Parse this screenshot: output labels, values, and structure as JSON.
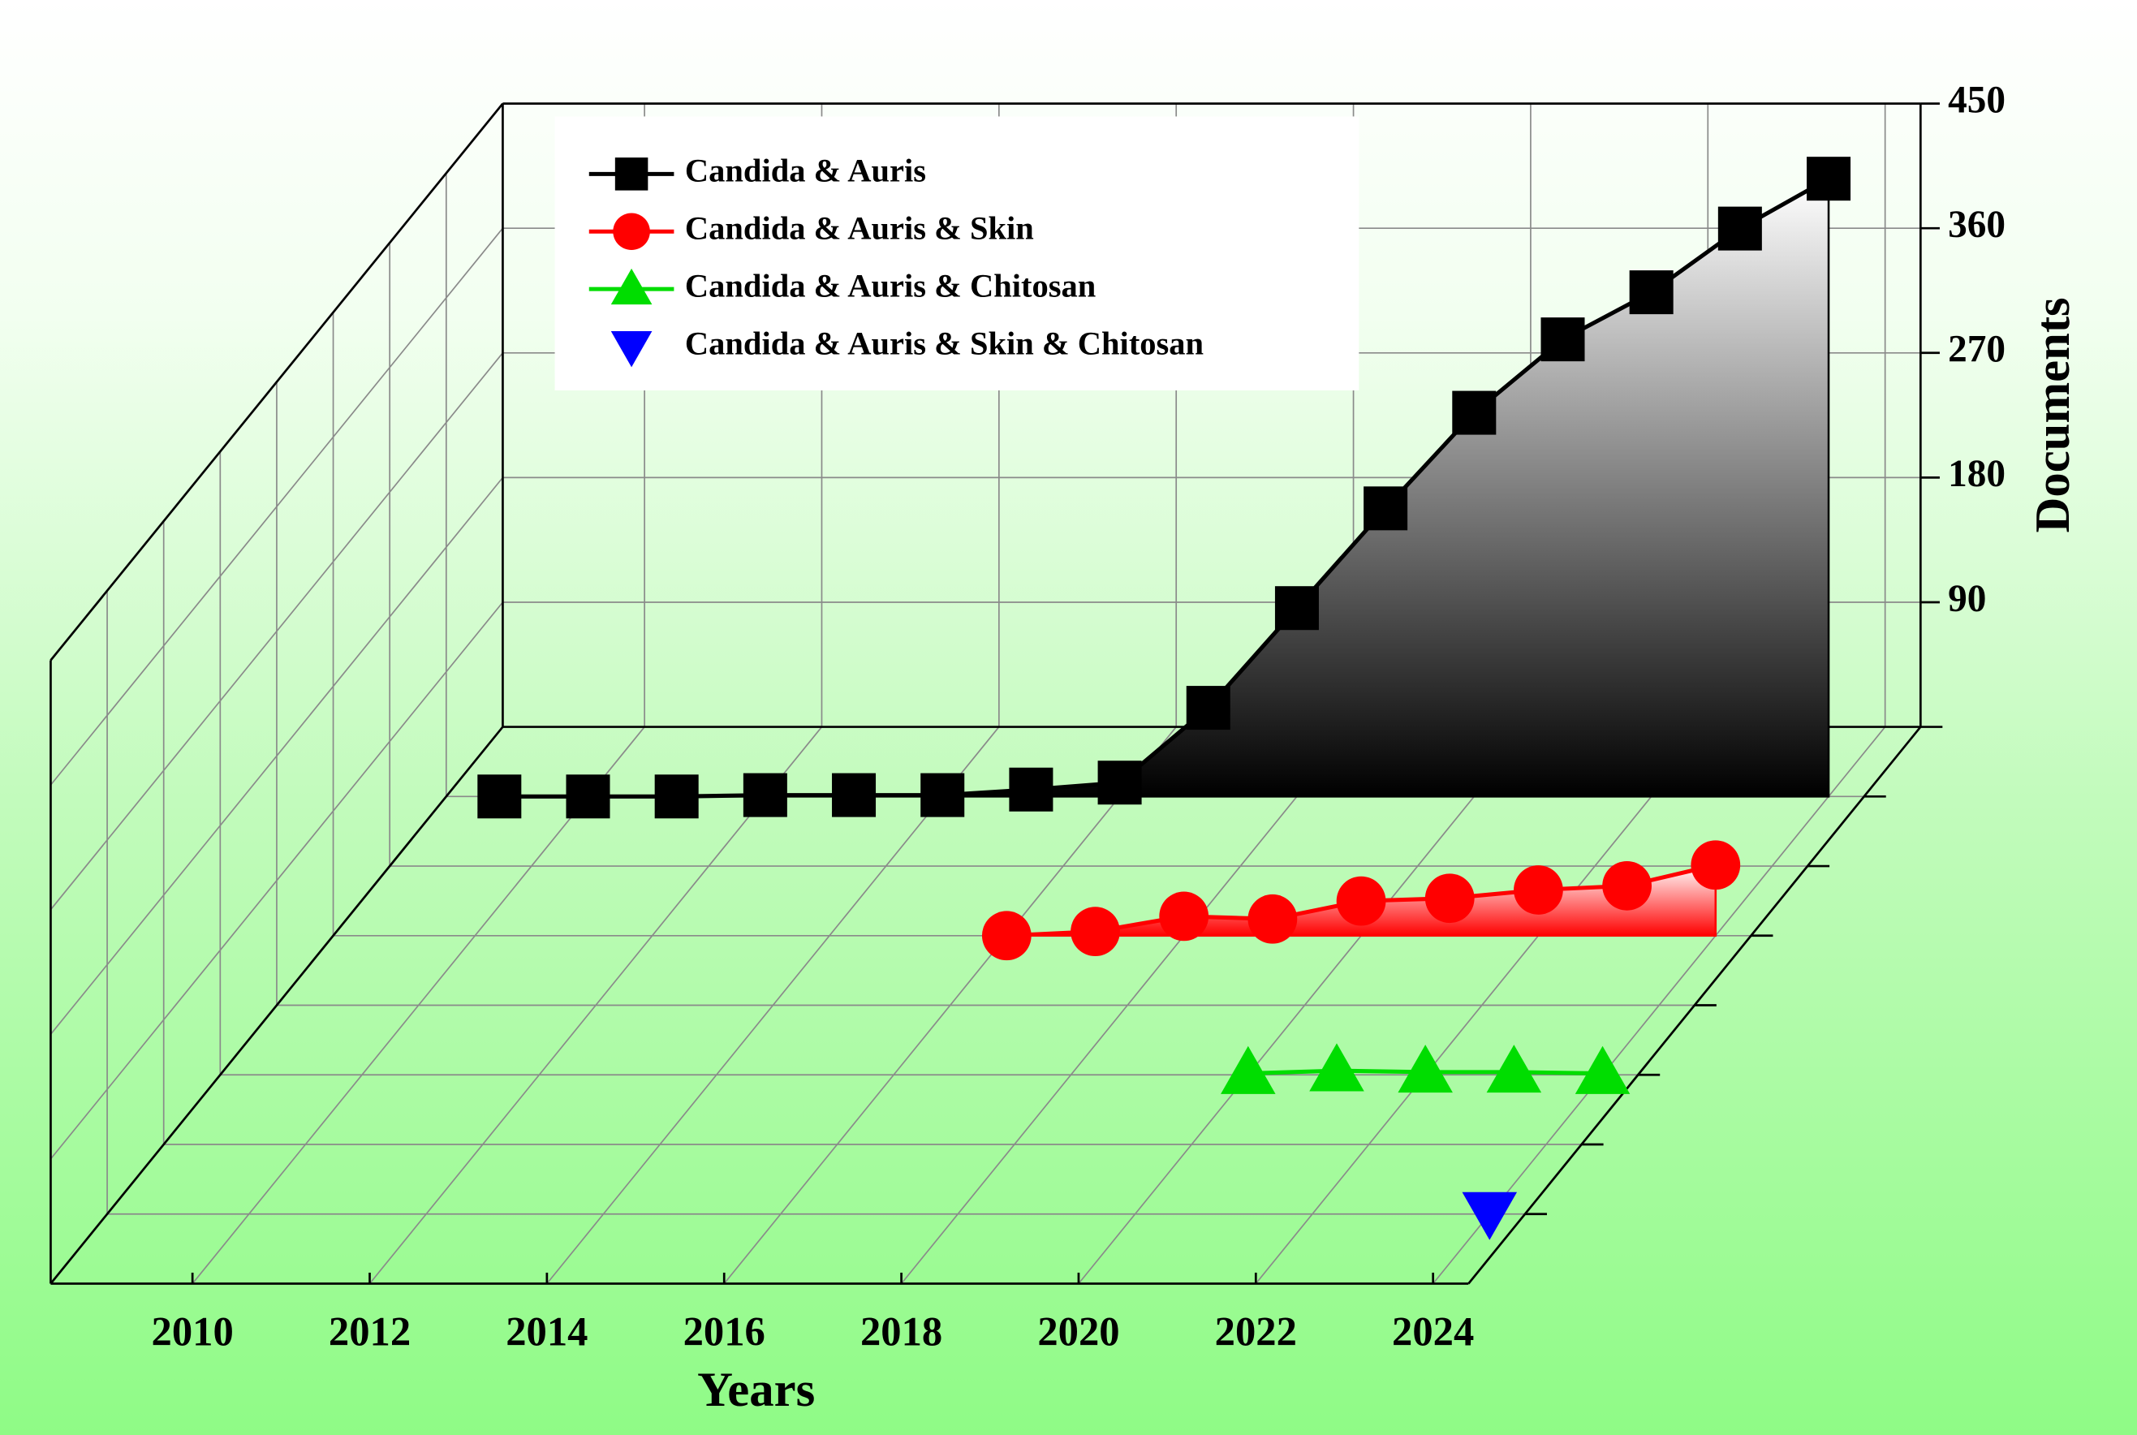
{
  "chart_data": {
    "type": "waterfall3d",
    "x_label": "Years",
    "y_label": "Documents",
    "xlim": [
      2008.4,
      2024.4
    ],
    "xticks": [
      2010,
      2012,
      2014,
      2016,
      2018,
      2020,
      2022,
      2024
    ],
    "ylim": [
      0,
      450
    ],
    "yticks": [
      90,
      180,
      270,
      360,
      450
    ],
    "grid": true,
    "series": [
      {
        "name": "Candida & Auris",
        "color": "#000000",
        "marker": "square",
        "area": true,
        "x": [
          2009,
          2010,
          2011,
          2012,
          2013,
          2014,
          2015,
          2016,
          2017,
          2018,
          2019,
          2020,
          2021,
          2022,
          2023,
          2024
        ],
        "values": [
          0,
          0,
          0,
          1,
          1,
          1,
          5,
          10,
          64,
          136,
          208,
          277,
          330,
          364,
          410,
          446
        ]
      },
      {
        "name": "Candida & Auris & Skin",
        "color": "#ff0000",
        "marker": "circle",
        "area": true,
        "x": [
          2016,
          2017,
          2018,
          2019,
          2020,
          2021,
          2022,
          2023,
          2024
        ],
        "values": [
          0,
          3,
          14,
          12,
          25,
          27,
          33,
          36,
          51
        ]
      },
      {
        "name": "Candida & Auris & Chitosan",
        "color": "#00dd00",
        "marker": "triangle",
        "area": false,
        "x": [
          2020,
          2021,
          2022,
          2023,
          2024
        ],
        "values": [
          1,
          3,
          2,
          2,
          1
        ]
      },
      {
        "name": "Candida & Auris & Skin & Chitosan",
        "color": "#0000ff",
        "marker": "triangle-down",
        "area": false,
        "x": [
          2024
        ],
        "values": [
          1
        ]
      }
    ]
  }
}
